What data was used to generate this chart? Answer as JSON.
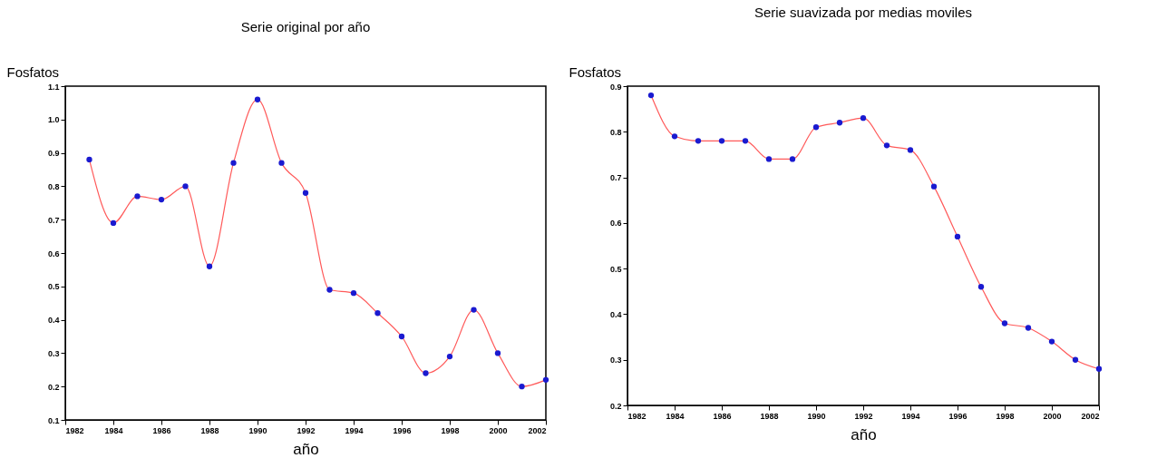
{
  "chart_data": [
    {
      "type": "line",
      "title": "Serie original por año",
      "xlabel": "año",
      "ylabel": "Fosfatos",
      "x": [
        1983,
        1984,
        1985,
        1986,
        1987,
        1988,
        1989,
        1990,
        1991,
        1992,
        1993,
        1994,
        1995,
        1996,
        1997,
        1998,
        1999,
        2000,
        2001,
        2002
      ],
      "series": [
        {
          "color": "#ff5a5a",
          "values": [
            0.88,
            0.69,
            0.77,
            0.76,
            0.8,
            0.56,
            0.87,
            1.06,
            0.87,
            0.78,
            0.49,
            0.48,
            0.42,
            0.35,
            0.24,
            0.29,
            0.43,
            0.3,
            0.2,
            0.22
          ]
        },
        {
          "type": "scatter",
          "marker": "circle",
          "color": "#1a1ad0",
          "values": [
            0.88,
            0.69,
            0.77,
            0.76,
            0.8,
            0.56,
            0.87,
            1.06,
            0.87,
            0.78,
            0.49,
            0.48,
            0.42,
            0.35,
            0.24,
            0.29,
            0.43,
            0.3,
            0.2,
            0.22
          ]
        }
      ],
      "line_style": "solid",
      "grid": false,
      "legend": false,
      "xlim": [
        1982,
        2002
      ],
      "xticks": [
        1982,
        1984,
        1986,
        1988,
        1990,
        1992,
        1994,
        1996,
        1998,
        2000,
        2002
      ],
      "ylim": [
        0.1,
        1.1
      ],
      "yticks": [
        0.1,
        0.2,
        0.3,
        0.4,
        0.5,
        0.6,
        0.7,
        0.8,
        0.9,
        {
          "value": 1,
          "label": "1.0"
        },
        1.1
      ]
    },
    {
      "type": "line",
      "title": "Serie suavizada por medias moviles",
      "xlabel": "año",
      "ylabel": "Fosfatos",
      "x": [
        1983,
        1984,
        1985,
        1986,
        1987,
        1988,
        1989,
        1990,
        1991,
        1992,
        1993,
        1994,
        1995,
        1996,
        1997,
        1998,
        1999,
        2000,
        2001,
        2002
      ],
      "series": [
        {
          "color": "#ff5a5a",
          "values": [
            0.88,
            0.79,
            0.78,
            0.78,
            0.78,
            0.74,
            0.74,
            0.81,
            0.82,
            0.83,
            0.77,
            0.76,
            0.68,
            0.57,
            0.46,
            0.38,
            0.37,
            0.34,
            0.3,
            0.28
          ]
        },
        {
          "type": "scatter",
          "marker": "circle",
          "color": "#1a1ad0",
          "values": [
            0.88,
            0.79,
            0.78,
            0.78,
            0.78,
            0.74,
            0.74,
            0.81,
            0.82,
            0.83,
            0.77,
            0.76,
            0.68,
            0.57,
            0.46,
            0.38,
            0.37,
            0.34,
            0.3,
            0.28
          ]
        }
      ],
      "line_style": "solid",
      "grid": false,
      "legend": false,
      "xlim": [
        1982,
        2002
      ],
      "xticks": [
        1982,
        1984,
        1986,
        1988,
        1990,
        1992,
        1994,
        1996,
        1998,
        2000,
        2002
      ],
      "ylim": [
        0.2,
        0.9
      ],
      "yticks": [
        0.2,
        0.3,
        0.4,
        0.5,
        0.6,
        0.7,
        0.8,
        0.9
      ]
    }
  ]
}
